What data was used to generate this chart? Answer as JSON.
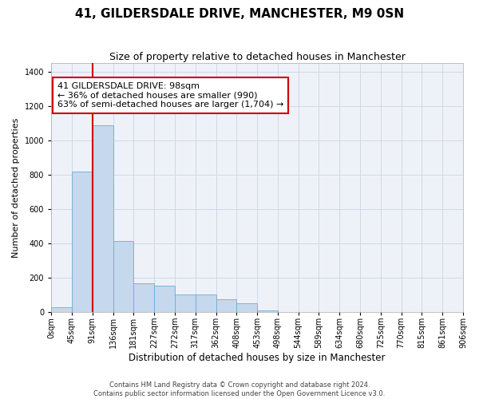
{
  "title": "41, GILDERSDALE DRIVE, MANCHESTER, M9 0SN",
  "subtitle": "Size of property relative to detached houses in Manchester",
  "xlabel": "Distribution of detached houses by size in Manchester",
  "ylabel": "Number of detached properties",
  "bin_labels": [
    "0sqm",
    "45sqm",
    "91sqm",
    "136sqm",
    "181sqm",
    "227sqm",
    "272sqm",
    "317sqm",
    "362sqm",
    "408sqm",
    "453sqm",
    "498sqm",
    "544sqm",
    "589sqm",
    "634sqm",
    "680sqm",
    "725sqm",
    "770sqm",
    "815sqm",
    "861sqm",
    "906sqm"
  ],
  "bar_heights": [
    30,
    820,
    1090,
    415,
    170,
    155,
    105,
    105,
    75,
    55,
    10,
    0,
    0,
    0,
    0,
    0,
    0,
    0,
    0,
    0
  ],
  "bar_color": "#c5d8ed",
  "bar_edge_color": "#6aaed6",
  "red_line_color": "#cc0000",
  "annotation_text": "41 GILDERSDALE DRIVE: 98sqm\n← 36% of detached houses are smaller (990)\n63% of semi-detached houses are larger (1,704) →",
  "annotation_box_color": "#ffffff",
  "annotation_box_edge": "#cc0000",
  "ylim": [
    0,
    1450
  ],
  "yticks": [
    0,
    200,
    400,
    600,
    800,
    1000,
    1200,
    1400
  ],
  "grid_color": "#d0d8e8",
  "bg_color": "#eef2f8",
  "footer_line1": "Contains HM Land Registry data © Crown copyright and database right 2024.",
  "footer_line2": "Contains public sector information licensed under the Open Government Licence v3.0.",
  "title_fontsize": 11,
  "subtitle_fontsize": 9,
  "ylabel_fontsize": 8,
  "xlabel_fontsize": 8.5,
  "tick_fontsize": 7,
  "annotation_fontsize": 8,
  "footer_fontsize": 6
}
